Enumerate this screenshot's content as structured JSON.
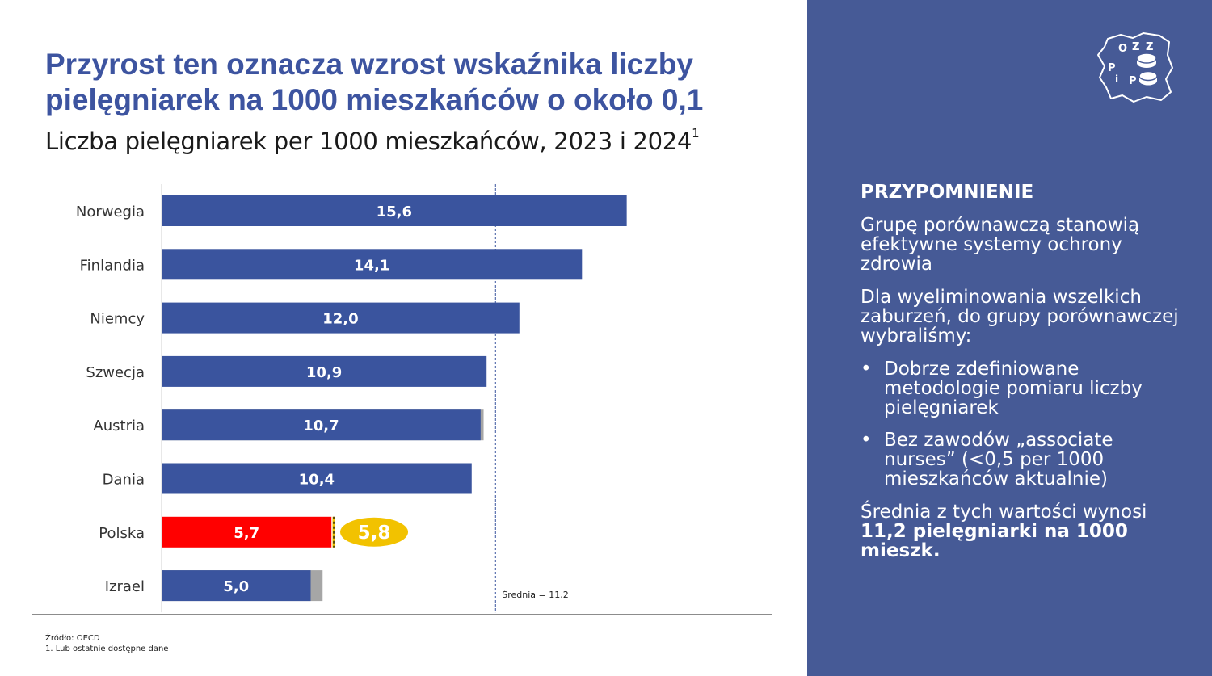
{
  "title": "Przyrost ten oznacza wzrost wskaźnika liczby pielęgniarek na 1000 mieszkańców o około 0,1",
  "subtitle": "Liczba pielęgniarek per 1000 mieszkańców, 2023 i 2024",
  "subtitle_sup": "1",
  "chart_data": {
    "type": "bar",
    "orientation": "horizontal",
    "categories": [
      "Norwegia",
      "Finlandia",
      "Niemcy",
      "Szwecja",
      "Austria",
      "Dania",
      "Polska",
      "Izrael"
    ],
    "series": [
      {
        "values": [
          15.6,
          14.1,
          12.0,
          10.9,
          10.7,
          10.4,
          5.7,
          5.0
        ]
      },
      {
        "values": [
          null,
          null,
          null,
          null,
          10.8,
          null,
          5.8,
          5.4
        ]
      }
    ],
    "value_labels": [
      "15,6",
      "14,1",
      "12,0",
      "10,9",
      "10,7",
      "10,4",
      "5,7",
      "5,0"
    ],
    "highlight": {
      "category": "Polska",
      "label": "5,8"
    },
    "average": {
      "value": 11.2,
      "label": "Średnia = 11,2"
    },
    "xlim": [
      0,
      20
    ],
    "grid": false,
    "colors": {
      "bar": "#3A549E",
      "highlight_bar": "#FF0000",
      "increment": "#A6A6A6",
      "callout": "#F2C200",
      "average_line": "#3A549E"
    }
  },
  "footnote": {
    "source": "Źródło: OECD",
    "note": "1. Lub ostatnie dostępne dane"
  },
  "sidebar": {
    "heading": "PRZYPOMNIENIE",
    "paragraph1": "Grupę porównawczą stanowią efektywne systemy ochrony zdrowia",
    "paragraph2": "Dla wyeliminowania wszelkich zaburzeń, do grupy porównawczej wybraliśmy:",
    "bullet_symbol": "•",
    "bullets": [
      "Dobrze zdefiniowane metodologie pomiaru liczby pielęgniarek",
      "Bez zawodów „associate nurses” (<0,5 per 1000 mieszkańców aktualnie)"
    ],
    "summary_prefix": "Średnia z tych wartości wynosi",
    "summary_bold": "11,2 pielęgniarki na 1000 mieszk.",
    "background": "#465A96"
  },
  "logo": {
    "letters": [
      "O",
      "Z",
      "Z",
      "P",
      "i",
      "P"
    ],
    "icon": "poland-map-nurse-cap-logo"
  }
}
